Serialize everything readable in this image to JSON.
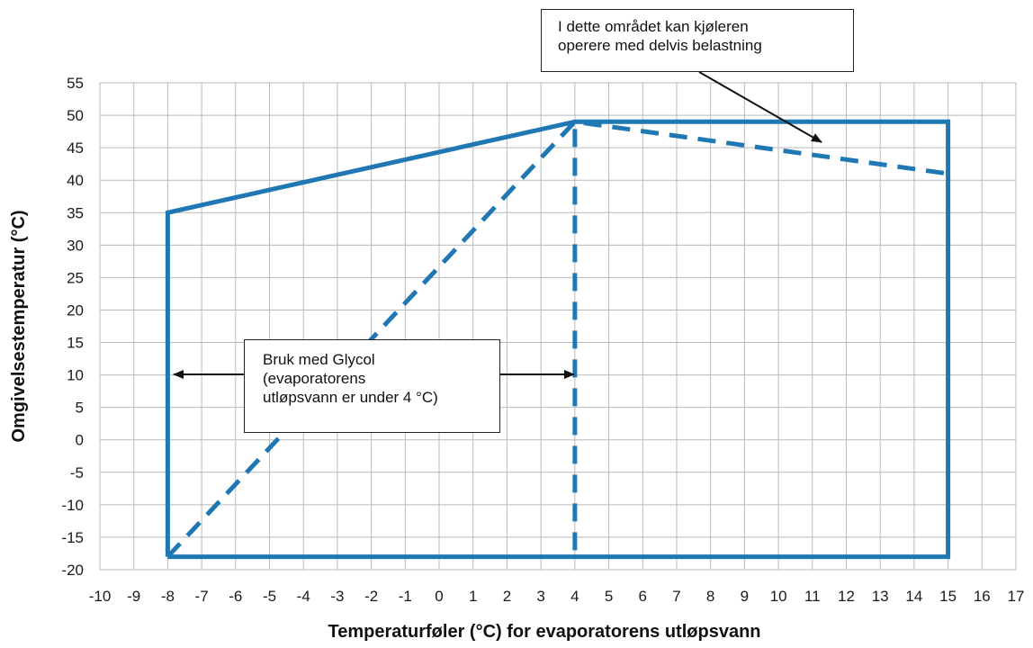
{
  "chart_data": {
    "type": "line",
    "xlabel": "Temperaturføler (°C) for evaporatorens utløpsvann",
    "ylabel": "Omgivelsestemperatur (°C)",
    "xlim": [
      -10,
      17
    ],
    "ylim": [
      -20,
      55
    ],
    "x_ticks": [
      -10,
      -9,
      -8,
      -7,
      -6,
      -5,
      -4,
      -3,
      -2,
      -1,
      0,
      1,
      2,
      3,
      4,
      5,
      6,
      7,
      8,
      9,
      10,
      11,
      12,
      13,
      14,
      15,
      16,
      17
    ],
    "y_ticks": [
      55,
      50,
      45,
      40,
      35,
      30,
      25,
      20,
      15,
      10,
      5,
      0,
      -5,
      -10,
      -15,
      -20
    ],
    "grid": true,
    "line_color": "#1f77b4",
    "series": [
      {
        "style": "solid",
        "x": [
          -8,
          -8,
          4,
          15,
          15,
          -8
        ],
        "y": [
          -18,
          35,
          49,
          49,
          -18,
          -18
        ]
      },
      {
        "style": "dashed",
        "x": [
          -8,
          4,
          15
        ],
        "y": [
          -18,
          49,
          41
        ]
      },
      {
        "style": "dashed",
        "x": [
          4,
          4
        ],
        "y": [
          -17,
          49
        ]
      }
    ],
    "annotations": [
      {
        "lines": [
          "I dette området kan kjøleren",
          "operere med delvis belastning"
        ]
      },
      {
        "lines": [
          "Bruk med Glycol",
          "(evaporatorens",
          "utløpsvann er under 4 °C)"
        ]
      }
    ]
  }
}
